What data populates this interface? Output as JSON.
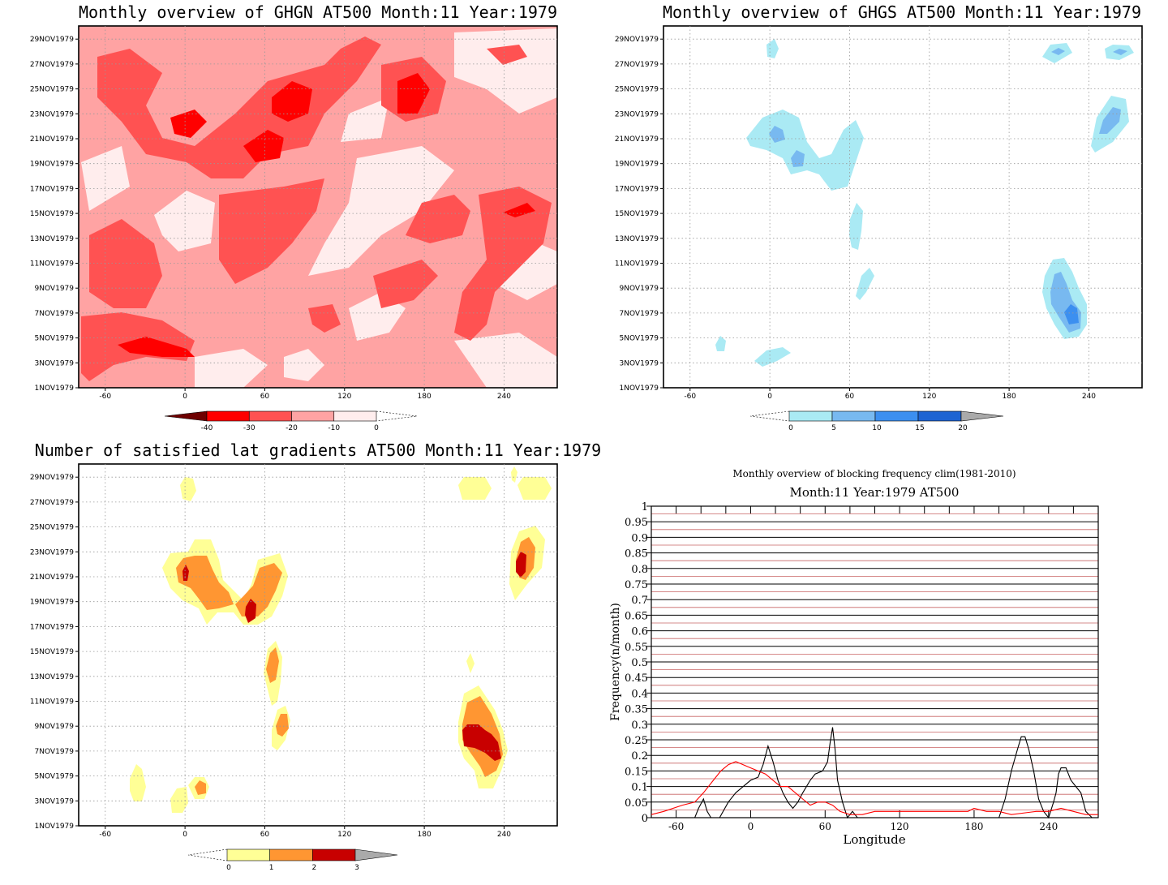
{
  "chart_data": [
    {
      "type": "heatmap",
      "title": "Monthly overview of GHGN AT500 Month:11 Year:1979",
      "x_ticks": [
        "-60",
        "0",
        "60",
        "120",
        "180",
        "240"
      ],
      "y_ticks": [
        "1NOV1979",
        "3NOV1979",
        "5NOV1979",
        "7NOV1979",
        "9NOV1979",
        "11NOV1979",
        "13NOV1979",
        "15NOV1979",
        "17NOV1979",
        "19NOV1979",
        "21NOV1979",
        "23NOV1979",
        "25NOV1979",
        "27NOV1979",
        "29NOV1979"
      ],
      "colorbar": {
        "labels": [
          "-40",
          "-30",
          "-20",
          "-10",
          "0"
        ],
        "colors": [
          "#6e0000",
          "#ff0000",
          "#ff5252",
          "#ffa3a3",
          "#ffeded"
        ]
      }
    },
    {
      "type": "heatmap",
      "title": "Monthly overview of GHGS AT500 Month:11 Year:1979",
      "x_ticks": [
        "-60",
        "0",
        "60",
        "120",
        "180",
        "240"
      ],
      "y_ticks": [
        "1NOV1979",
        "3NOV1979",
        "5NOV1979",
        "7NOV1979",
        "9NOV1979",
        "11NOV1979",
        "13NOV1979",
        "15NOV1979",
        "17NOV1979",
        "19NOV1979",
        "21NOV1979",
        "23NOV1979",
        "25NOV1979",
        "27NOV1979",
        "29NOV1979"
      ],
      "colorbar": {
        "labels": [
          "0",
          "5",
          "10",
          "15",
          "20"
        ],
        "colors": [
          "#aaeaf4",
          "#78b9f0",
          "#3c8ff0",
          "#1e64d2",
          "#aaaaaa"
        ]
      }
    },
    {
      "type": "heatmap",
      "title": "Number of satisfied lat gradients AT500 Month:11 Year:1979",
      "x_ticks": [
        "-60",
        "0",
        "60",
        "120",
        "180",
        "240"
      ],
      "y_ticks": [
        "1NOV1979",
        "3NOV1979",
        "5NOV1979",
        "7NOV1979",
        "9NOV1979",
        "11NOV1979",
        "13NOV1979",
        "15NOV1979",
        "17NOV1979",
        "19NOV1979",
        "21NOV1979",
        "23NOV1979",
        "25NOV1979",
        "27NOV1979",
        "29NOV1979"
      ],
      "colorbar": {
        "labels": [
          "0",
          "1",
          "2",
          "3"
        ],
        "colors": [
          "#ffff96",
          "#ff9632",
          "#c80000",
          "#aaaaaa"
        ]
      }
    },
    {
      "type": "line",
      "title": "Monthly overview of blocking frequency clim(1981-2010)",
      "subtitle": "Month:11 Year:1979  AT500",
      "xlabel": "Longitude",
      "ylabel": "Frequency(n/month)",
      "x_ticks": [
        "-60",
        "0",
        "60",
        "120",
        "180",
        "240"
      ],
      "y_ticks": [
        "0",
        "0.05",
        "0.1",
        "0.15",
        "0.2",
        "0.25",
        "0.3",
        "0.35",
        "0.4",
        "0.45",
        "0.5",
        "0.55",
        "0.6",
        "0.65",
        "0.7",
        "0.75",
        "0.8",
        "0.85",
        "0.9",
        "0.95",
        "1"
      ],
      "xlim": [
        -80,
        280
      ],
      "ylim": [
        0,
        1
      ],
      "series": [
        {
          "color": "#000000",
          "x": [
            -80,
            -45,
            -42,
            -38,
            -35,
            -32,
            -25,
            -18,
            -12,
            -6,
            0,
            6,
            10,
            14,
            18,
            22,
            26,
            30,
            34,
            38,
            42,
            48,
            52,
            58,
            62,
            64,
            66,
            68,
            70,
            74,
            78,
            82,
            86,
            90,
            200,
            205,
            210,
            215,
            218,
            221,
            224,
            228,
            232,
            236,
            240,
            244,
            246,
            248,
            250,
            254,
            258,
            262,
            266,
            270,
            275,
            280
          ],
          "y": [
            0,
            0,
            0.03,
            0.06,
            0.02,
            0,
            0,
            0.05,
            0.08,
            0.1,
            0.12,
            0.13,
            0.17,
            0.23,
            0.18,
            0.12,
            0.08,
            0.05,
            0.03,
            0.05,
            0.08,
            0.12,
            0.14,
            0.15,
            0.18,
            0.24,
            0.29,
            0.22,
            0.12,
            0.05,
            0,
            0.02,
            0,
            0,
            0,
            0.06,
            0.15,
            0.22,
            0.26,
            0.26,
            0.22,
            0.15,
            0.06,
            0.02,
            0,
            0.05,
            0.08,
            0.14,
            0.16,
            0.16,
            0.12,
            0.1,
            0.08,
            0.02,
            0,
            0
          ]
        },
        {
          "color": "#ff0000",
          "x": [
            -80,
            -70,
            -55,
            -45,
            -38,
            -30,
            -24,
            -18,
            -12,
            -6,
            0,
            6,
            12,
            18,
            24,
            30,
            36,
            42,
            48,
            54,
            60,
            66,
            72,
            80,
            90,
            100,
            120,
            150,
            175,
            180,
            190,
            200,
            210,
            230,
            240,
            250,
            260,
            270,
            280
          ],
          "y": [
            0.01,
            0.02,
            0.04,
            0.05,
            0.08,
            0.12,
            0.15,
            0.17,
            0.18,
            0.17,
            0.16,
            0.15,
            0.14,
            0.12,
            0.1,
            0.1,
            0.08,
            0.06,
            0.04,
            0.05,
            0.05,
            0.04,
            0.02,
            0.01,
            0.01,
            0.02,
            0.02,
            0.02,
            0.02,
            0.03,
            0.02,
            0.02,
            0.01,
            0.02,
            0.02,
            0.03,
            0.02,
            0.01,
            0.01
          ]
        }
      ]
    }
  ]
}
